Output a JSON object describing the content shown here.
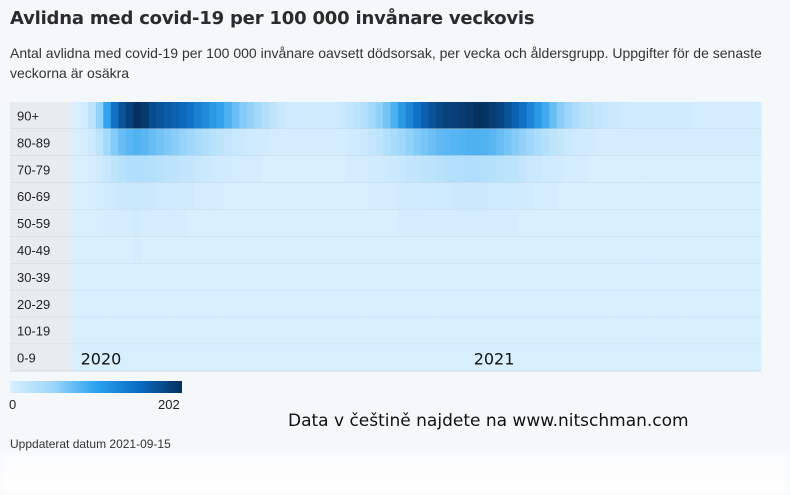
{
  "title": "Avlidna med covid-19 per 100 000 invånare veckovis",
  "subtitle": "Antal avlidna med covid-19 per 100 000 invånare oavsett dödsorsak, per vecka och åldersgrupp. Uppgifter för de senaste veckorna är osäkra",
  "legend": {
    "min_label": "0",
    "max_label": "202"
  },
  "watermark": "Data v češtině najdete na www.nitschman.com",
  "updated": "Uppdaterat datum 2021-09-15",
  "colors": {
    "low": "#d8efff",
    "mid": "#2aa3ef",
    "high": "#05305f",
    "label_bg": "#e7ecf1",
    "page_bg": "#f5f8fb"
  },
  "chart_data": {
    "type": "heatmap",
    "rows": [
      "90+",
      "80-89",
      "70-79",
      "60-69",
      "50-59",
      "40-49",
      "30-39",
      "20-29",
      "10-19",
      "0-9"
    ],
    "year_labels": [
      {
        "label": "2020",
        "week_index": 1
      },
      {
        "label": "2021",
        "week_index": 53
      }
    ],
    "value_range": [
      0,
      202
    ],
    "weeks": 91,
    "series": [
      {
        "name": "90+",
        "values": [
          0,
          2,
          8,
          25,
          60,
          110,
          150,
          175,
          202,
          190,
          160,
          150,
          140,
          130,
          120,
          110,
          95,
          85,
          70,
          60,
          50,
          40,
          30,
          25,
          18,
          12,
          8,
          5,
          3,
          2,
          2,
          2,
          2,
          2,
          3,
          4,
          6,
          8,
          12,
          18,
          25,
          35,
          50,
          70,
          90,
          110,
          130,
          150,
          165,
          175,
          180,
          185,
          190,
          202,
          198,
          185,
          170,
          150,
          130,
          110,
          90,
          70,
          55,
          40,
          28,
          20,
          14,
          10,
          8,
          6,
          5,
          4,
          3,
          3,
          2,
          2,
          2,
          2,
          2,
          2,
          2,
          2,
          1,
          1,
          1,
          1,
          1,
          1,
          1,
          1,
          1
        ]
      },
      {
        "name": "80-89",
        "values": [
          0,
          1,
          3,
          8,
          18,
          30,
          40,
          45,
          48,
          45,
          40,
          36,
          32,
          28,
          24,
          20,
          16,
          13,
          10,
          8,
          6,
          5,
          4,
          3,
          2,
          2,
          1,
          1,
          1,
          1,
          1,
          1,
          1,
          1,
          1,
          1,
          2,
          3,
          4,
          6,
          8,
          12,
          16,
          20,
          25,
          30,
          34,
          38,
          42,
          44,
          46,
          47,
          48,
          49,
          48,
          45,
          40,
          35,
          30,
          25,
          20,
          15,
          11,
          8,
          6,
          4,
          3,
          2,
          2,
          1,
          1,
          1,
          1,
          1,
          1,
          1,
          1,
          1,
          1,
          1,
          1,
          1,
          1,
          1,
          1,
          1,
          1,
          1,
          1,
          1,
          1
        ]
      },
      {
        "name": "70-79",
        "values": [
          0,
          0,
          1,
          2,
          5,
          8,
          10,
          12,
          13,
          12,
          11,
          10,
          9,
          8,
          7,
          6,
          5,
          4,
          3,
          2,
          2,
          1,
          1,
          1,
          1,
          0,
          0,
          0,
          0,
          0,
          0,
          0,
          0,
          0,
          0,
          0,
          1,
          1,
          1,
          2,
          2,
          3,
          4,
          5,
          6,
          7,
          8,
          9,
          10,
          11,
          12,
          12,
          13,
          13,
          12,
          11,
          10,
          9,
          8,
          6,
          5,
          4,
          3,
          2,
          2,
          1,
          1,
          1,
          0,
          0,
          0,
          0,
          0,
          0,
          0,
          0,
          0,
          0,
          0,
          0,
          0,
          0,
          0,
          0,
          0,
          0,
          0,
          0,
          0,
          0,
          0
        ]
      },
      {
        "name": "60-69",
        "values": [
          0,
          0,
          0,
          1,
          2,
          3,
          4,
          4,
          5,
          4,
          4,
          3,
          3,
          2,
          2,
          2,
          1,
          1,
          1,
          1,
          0,
          0,
          0,
          0,
          0,
          0,
          0,
          0,
          0,
          0,
          0,
          0,
          0,
          0,
          0,
          0,
          0,
          0,
          0,
          1,
          1,
          1,
          1,
          2,
          2,
          2,
          3,
          3,
          3,
          3,
          4,
          4,
          4,
          4,
          4,
          3,
          3,
          3,
          2,
          2,
          2,
          1,
          1,
          1,
          0,
          0,
          0,
          0,
          0,
          0,
          0,
          0,
          0,
          0,
          0,
          0,
          0,
          0,
          0,
          0,
          0,
          0,
          0,
          0,
          0,
          0,
          0,
          0,
          0,
          0,
          0
        ]
      },
      {
        "name": "50-59",
        "values": [
          0,
          0,
          0,
          0,
          1,
          1,
          1,
          1,
          2,
          1,
          1,
          1,
          1,
          1,
          1,
          0,
          0,
          0,
          0,
          0,
          0,
          0,
          0,
          0,
          0,
          0,
          0,
          0,
          0,
          0,
          0,
          0,
          0,
          0,
          0,
          0,
          0,
          0,
          0,
          0,
          0,
          0,
          0,
          1,
          1,
          1,
          1,
          1,
          1,
          1,
          1,
          1,
          1,
          1,
          1,
          1,
          1,
          1,
          1,
          0,
          0,
          0,
          0,
          0,
          0,
          0,
          0,
          0,
          0,
          0,
          0,
          0,
          0,
          0,
          0,
          0,
          0,
          0,
          0,
          0,
          0,
          0,
          0,
          0,
          0,
          0,
          0,
          0,
          0,
          0,
          0
        ]
      },
      {
        "name": "40-49",
        "values": [
          0,
          0,
          0,
          0,
          0,
          0,
          0,
          0,
          1,
          0,
          0,
          0,
          0,
          0,
          0,
          0,
          0,
          0,
          0,
          0,
          0,
          0,
          0,
          0,
          0,
          0,
          0,
          0,
          0,
          0,
          0,
          0,
          0,
          0,
          0,
          0,
          0,
          0,
          0,
          0,
          0,
          0,
          0,
          0,
          0,
          0,
          0,
          0,
          0,
          0,
          0,
          0,
          0,
          0,
          0,
          0,
          0,
          0,
          0,
          0,
          0,
          0,
          0,
          0,
          0,
          0,
          0,
          0,
          0,
          0,
          0,
          0,
          0,
          0,
          0,
          0,
          0,
          0,
          0,
          0,
          0,
          0,
          0,
          0,
          0,
          0,
          0,
          0,
          0,
          0,
          0
        ]
      },
      {
        "name": "30-39",
        "values": [
          0,
          0,
          0,
          0,
          0,
          0,
          0,
          0,
          0,
          0,
          0,
          0,
          0,
          0,
          0,
          0,
          0,
          0,
          0,
          0,
          0,
          0,
          0,
          0,
          0,
          0,
          0,
          0,
          0,
          0,
          0,
          0,
          0,
          0,
          0,
          0,
          0,
          0,
          0,
          0,
          0,
          0,
          0,
          0,
          0,
          0,
          0,
          0,
          0,
          0,
          0,
          0,
          0,
          0,
          0,
          0,
          0,
          0,
          0,
          0,
          0,
          0,
          0,
          0,
          0,
          0,
          0,
          0,
          0,
          0,
          0,
          0,
          0,
          0,
          0,
          0,
          0,
          0,
          0,
          0,
          0,
          0,
          0,
          0,
          0,
          0,
          0,
          0,
          0,
          0,
          0
        ]
      },
      {
        "name": "20-29",
        "values": [
          0,
          0,
          0,
          0,
          0,
          0,
          0,
          0,
          0,
          0,
          0,
          0,
          0,
          0,
          0,
          0,
          0,
          0,
          0,
          0,
          0,
          0,
          0,
          0,
          0,
          0,
          0,
          0,
          0,
          0,
          0,
          0,
          0,
          0,
          0,
          0,
          0,
          0,
          0,
          0,
          0,
          0,
          0,
          0,
          0,
          0,
          0,
          0,
          0,
          0,
          0,
          0,
          0,
          0,
          0,
          0,
          0,
          0,
          0,
          0,
          0,
          0,
          0,
          0,
          0,
          0,
          0,
          0,
          0,
          0,
          0,
          0,
          0,
          0,
          0,
          0,
          0,
          0,
          0,
          0,
          0,
          0,
          0,
          0,
          0,
          0,
          0,
          0,
          0,
          0,
          0
        ]
      },
      {
        "name": "10-19",
        "values": [
          0,
          0,
          0,
          0,
          0,
          0,
          0,
          0,
          0,
          0,
          0,
          0,
          0,
          0,
          0,
          0,
          0,
          0,
          0,
          0,
          0,
          0,
          0,
          0,
          0,
          0,
          0,
          0,
          0,
          0,
          0,
          0,
          0,
          0,
          0,
          0,
          0,
          0,
          0,
          0,
          0,
          0,
          0,
          0,
          0,
          0,
          0,
          0,
          0,
          0,
          0,
          0,
          0,
          0,
          0,
          0,
          0,
          0,
          0,
          0,
          0,
          0,
          0,
          0,
          0,
          0,
          0,
          0,
          0,
          0,
          0,
          0,
          0,
          0,
          0,
          0,
          0,
          0,
          0,
          0,
          0,
          0,
          0,
          0,
          0,
          0,
          0,
          0,
          0,
          0,
          0
        ]
      },
      {
        "name": "0-9",
        "values": [
          0,
          0,
          0,
          0,
          0,
          0,
          0,
          0,
          0,
          0,
          0,
          0,
          0,
          0,
          0,
          0,
          0,
          0,
          0,
          0,
          0,
          0,
          0,
          0,
          0,
          0,
          0,
          0,
          0,
          0,
          0,
          0,
          0,
          0,
          0,
          0,
          0,
          0,
          0,
          0,
          0,
          0,
          0,
          0,
          0,
          0,
          0,
          0,
          0,
          0,
          0,
          0,
          0,
          0,
          0,
          0,
          0,
          0,
          0,
          0,
          0,
          0,
          0,
          0,
          0,
          0,
          0,
          0,
          0,
          0,
          0,
          0,
          0,
          0,
          0,
          0,
          0,
          0,
          0,
          0,
          0,
          0,
          0,
          0,
          0,
          0,
          0,
          0,
          0,
          0,
          0
        ]
      }
    ]
  }
}
